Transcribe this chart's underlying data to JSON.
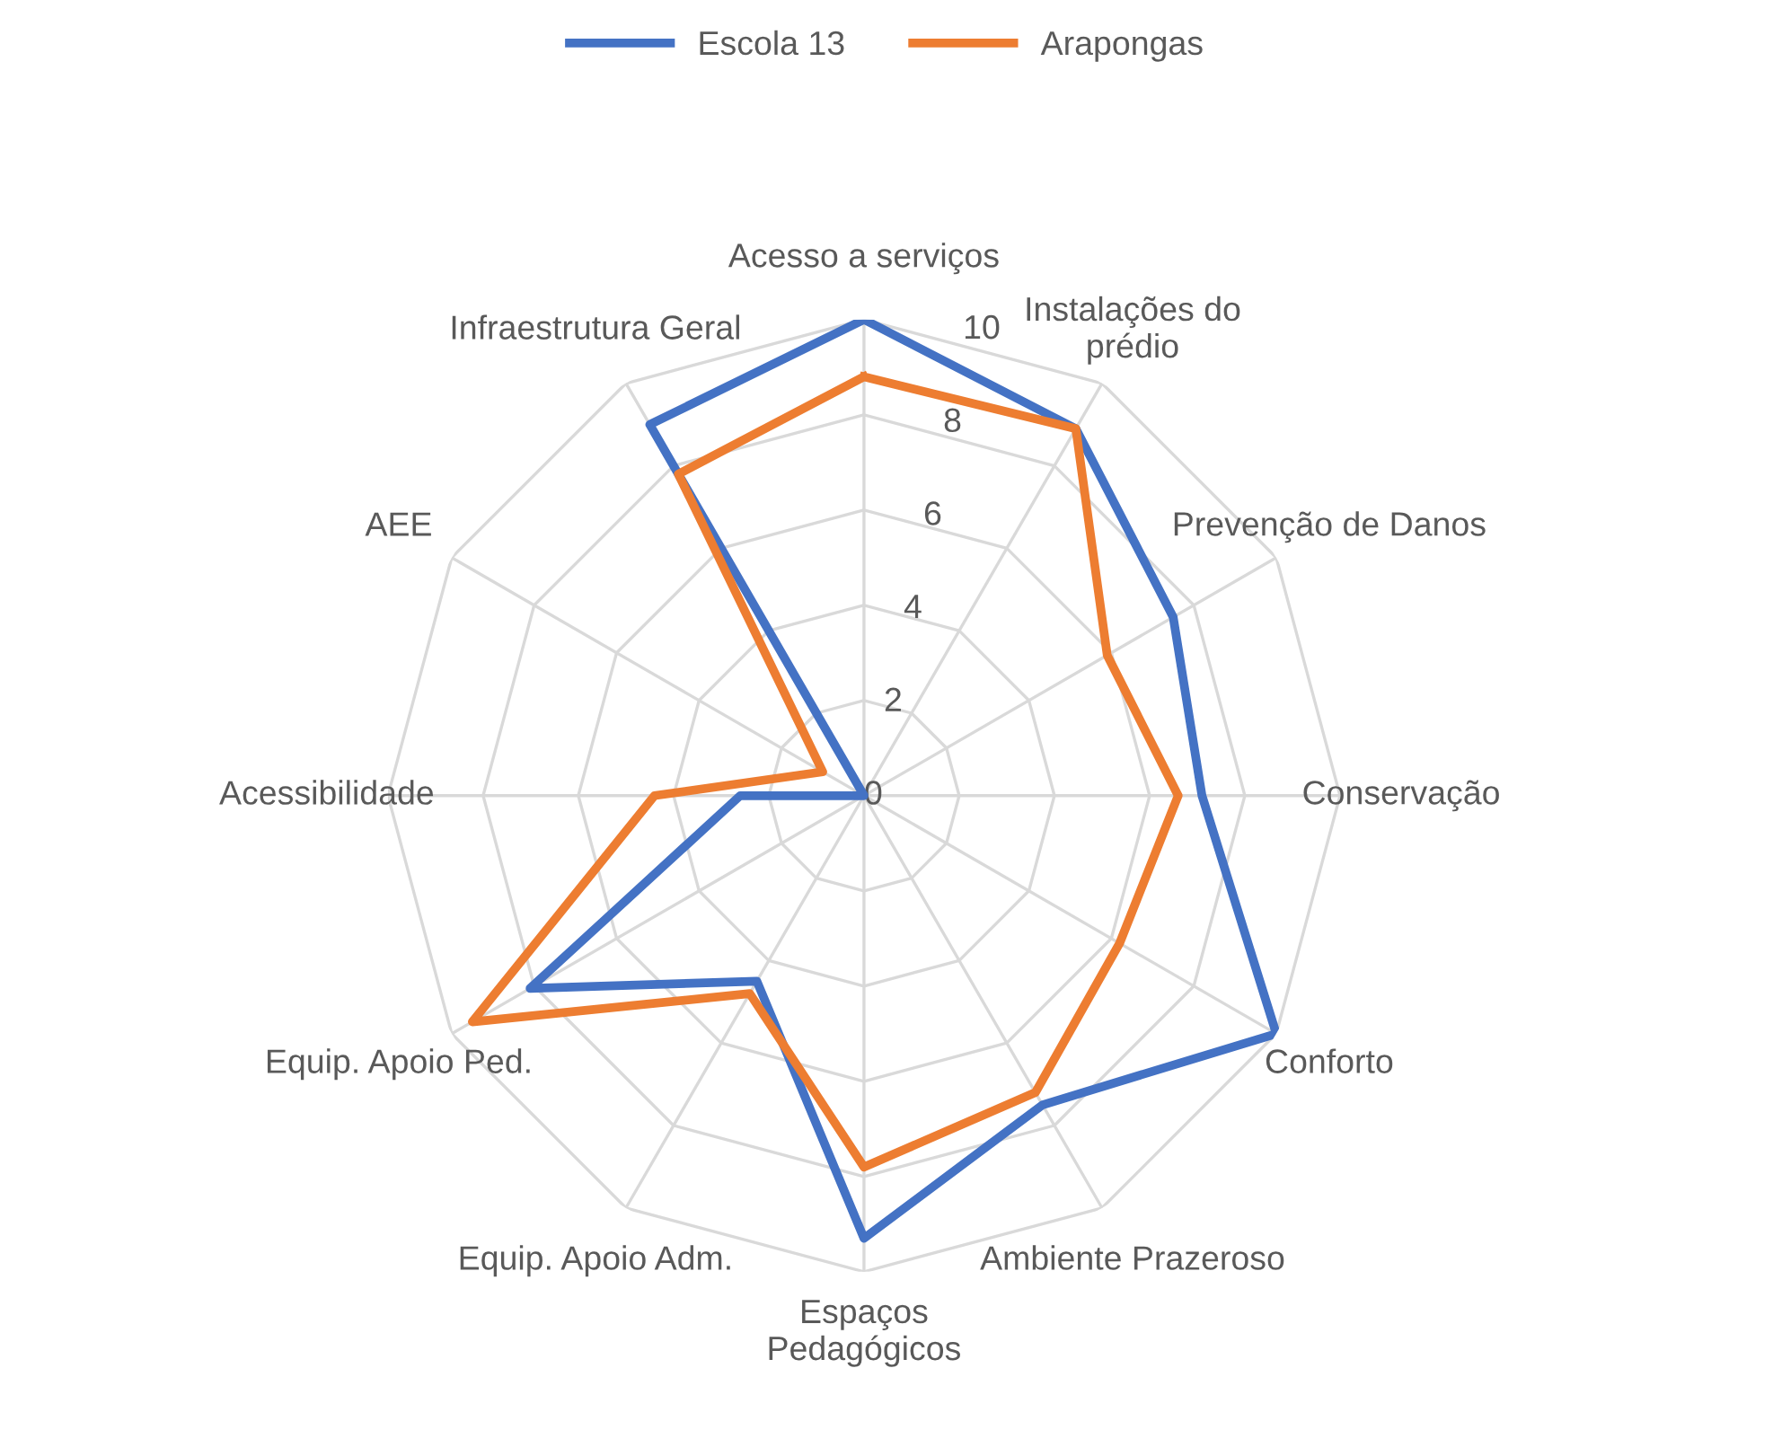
{
  "chart_data": {
    "type": "radar",
    "categories": [
      "Acesso a serviços",
      "Instalações do\nprédio",
      "Prevenção de Danos",
      "Conservação",
      "Conforto",
      "Ambiente Prazeroso",
      "Espaços\nPedagógicos",
      "Equip. Apoio Adm.",
      "Equip. Apoio Ped.",
      "Acessibilidade",
      "AEE",
      "Infraestrutura Geral"
    ],
    "series": [
      {
        "name": "Escola 13",
        "color": "#4472c4",
        "values": [
          10,
          8.9,
          7.5,
          7.1,
          10,
          7.5,
          9.3,
          4.5,
          8.1,
          2.6,
          0,
          9.0
        ]
      },
      {
        "name": "Arapongas",
        "color": "#ed7d31",
        "values": [
          8.8,
          8.9,
          5.9,
          6.6,
          6.2,
          7.2,
          7.8,
          4.8,
          9.5,
          4.4,
          1.0,
          7.8
        ]
      }
    ],
    "ylim": [
      0,
      10
    ],
    "yticks": [
      0,
      2,
      4,
      6,
      8,
      10
    ],
    "grid": true,
    "legend": "top",
    "marker": "none",
    "line_style": "solid"
  }
}
